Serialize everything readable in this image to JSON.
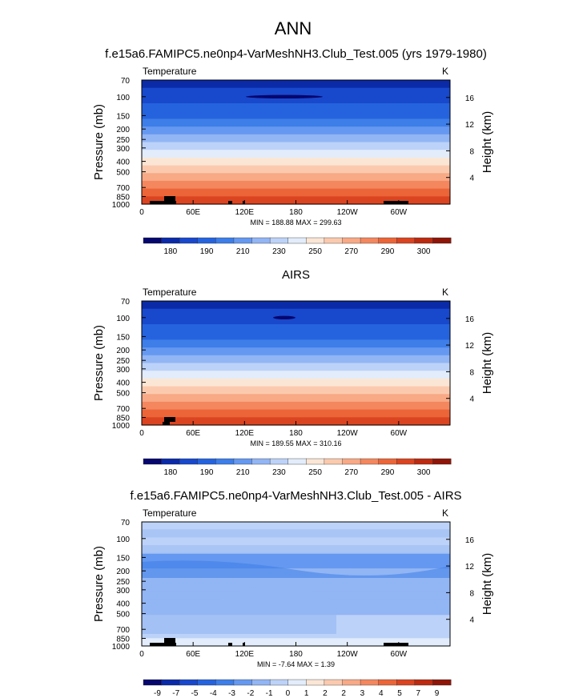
{
  "main_title": "ANN",
  "chart_data": [
    {
      "type": "heatmap",
      "title": "f.e15a6.FAMIPC5.ne0np4-VarMeshNH3.Club_Test.005 (yrs 1979-1980)",
      "variable": "Temperature",
      "units": "K",
      "ylabel": "Pressure (mb)",
      "ylabel_right": "Height (km)",
      "x_ticks": [
        "0",
        "60E",
        "120E",
        "180",
        "120W",
        "60W"
      ],
      "y_ticks": [
        "70",
        "100",
        "150",
        "200",
        "250",
        "300",
        "400",
        "500",
        "700",
        "850",
        "1000"
      ],
      "y_ticks_right": [
        "16",
        "12",
        "8",
        "4"
      ],
      "stats": "MIN = 188.88  MAX = 299.63",
      "colorbar_labels": [
        "180",
        "190",
        "210",
        "230",
        "250",
        "270",
        "290",
        "300"
      ],
      "colorbar_colors": [
        "#06066e",
        "#0a2aa8",
        "#1848cc",
        "#2563de",
        "#3d7ee8",
        "#6598f0",
        "#92b5f4",
        "#bcd2f8",
        "#e2ecfb",
        "#fbe6d6",
        "#fbcaae",
        "#f8a985",
        "#f4875e",
        "#ec6538",
        "#da4420",
        "#bc2a10",
        "#8e1508"
      ],
      "profile_level_colors": [
        1,
        2,
        2,
        3,
        3,
        4,
        5,
        6,
        7,
        8,
        9,
        10,
        11,
        12,
        13,
        14
      ]
    },
    {
      "type": "heatmap",
      "title": "AIRS",
      "variable": "Temperature",
      "units": "K",
      "ylabel": "Pressure (mb)",
      "ylabel_right": "Height (km)",
      "x_ticks": [
        "0",
        "60E",
        "120E",
        "180",
        "120W",
        "60W"
      ],
      "y_ticks": [
        "70",
        "100",
        "150",
        "200",
        "250",
        "300",
        "400",
        "500",
        "700",
        "850",
        "1000"
      ],
      "y_ticks_right": [
        "16",
        "12",
        "8",
        "4"
      ],
      "stats": "MIN = 189.55  MAX = 310.16",
      "colorbar_labels": [
        "180",
        "190",
        "210",
        "230",
        "250",
        "270",
        "290",
        "300"
      ],
      "colorbar_colors": [
        "#06066e",
        "#0a2aa8",
        "#1848cc",
        "#2563de",
        "#3d7ee8",
        "#6598f0",
        "#92b5f4",
        "#bcd2f8",
        "#e2ecfb",
        "#fbe6d6",
        "#fbcaae",
        "#f8a985",
        "#f4875e",
        "#ec6538",
        "#da4420",
        "#bc2a10",
        "#8e1508"
      ],
      "profile_level_colors": [
        1,
        2,
        2,
        3,
        3,
        4,
        5,
        6,
        7,
        8,
        9,
        10,
        11,
        12,
        13,
        14
      ]
    },
    {
      "type": "heatmap",
      "title": "f.e15a6.FAMIPC5.ne0np4-VarMeshNH3.Club_Test.005 - AIRS",
      "variable": "Temperature",
      "units": "K",
      "ylabel": "Pressure (mb)",
      "ylabel_right": "Height (km)",
      "x_ticks": [
        "0",
        "60E",
        "120E",
        "180",
        "120W",
        "60W"
      ],
      "y_ticks": [
        "70",
        "100",
        "150",
        "200",
        "250",
        "300",
        "400",
        "500",
        "700",
        "850",
        "1000"
      ],
      "y_ticks_right": [
        "16",
        "12",
        "8",
        "4"
      ],
      "stats": "MIN = -7.64  MAX =  1.39",
      "colorbar_labels": [
        "-9",
        "-7",
        "-5",
        "-4",
        "-3",
        "-2",
        "-1",
        "0",
        "1",
        "2",
        "2",
        "3",
        "4",
        "5",
        "7",
        "9"
      ],
      "colorbar_colors": [
        "#06066e",
        "#0a2aa8",
        "#1848cc",
        "#2563de",
        "#3d7ee8",
        "#6598f0",
        "#92b5f4",
        "#bcd2f8",
        "#e2ecfb",
        "#fbe6d6",
        "#fbcaae",
        "#f8a985",
        "#f4875e",
        "#ec6538",
        "#da4420",
        "#bc2a10",
        "#8e1508"
      ],
      "profile_level_colors": [
        7,
        6,
        7,
        6,
        5,
        5,
        6,
        6,
        6,
        6,
        6,
        6,
        7,
        7,
        7,
        8
      ]
    }
  ]
}
